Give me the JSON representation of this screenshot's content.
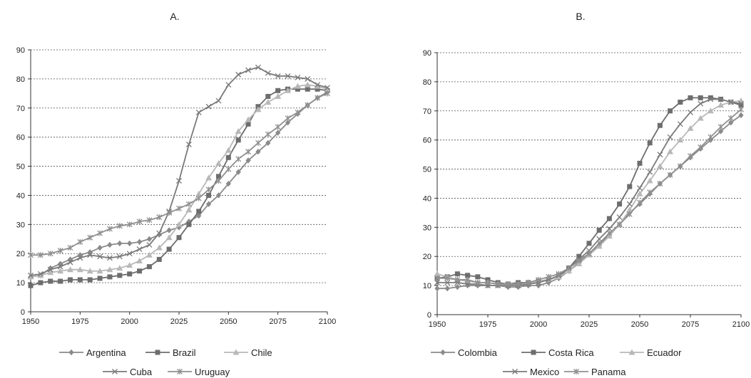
{
  "chart_data": [
    {
      "type": "line",
      "title": "A.",
      "xlabel": "",
      "ylabel": "",
      "x_ticks": [
        1950,
        1975,
        2000,
        2025,
        2050,
        2075,
        2100
      ],
      "y_ticks": [
        0,
        10,
        20,
        30,
        40,
        50,
        60,
        70,
        80,
        90
      ],
      "xlim": [
        1950,
        2100
      ],
      "ylim": [
        0,
        90
      ],
      "grid": "horizontal dashed",
      "legend_position": "bottom",
      "x": [
        1950,
        1955,
        1960,
        1965,
        1970,
        1975,
        1980,
        1985,
        1990,
        1995,
        2000,
        2005,
        2010,
        2015,
        2020,
        2025,
        2030,
        2035,
        2040,
        2045,
        2050,
        2055,
        2060,
        2065,
        2070,
        2075,
        2080,
        2085,
        2090,
        2095,
        2100
      ],
      "series": [
        {
          "name": "Argentina",
          "marker": "diamond",
          "color": "#8a8a8a",
          "values": [
            12,
            12.5,
            15,
            16.5,
            18,
            19.5,
            20.5,
            22,
            23,
            23.5,
            23.5,
            24,
            25,
            26.5,
            28,
            29,
            31,
            33,
            37,
            40,
            44,
            48,
            52,
            55,
            58,
            61.5,
            65,
            68,
            71,
            73.5,
            75.5
          ]
        },
        {
          "name": "Brazil",
          "marker": "square",
          "color": "#6d6d6d",
          "values": [
            9,
            10,
            10.5,
            10.5,
            11,
            11,
            11,
            11.5,
            12,
            12.5,
            13,
            14,
            15.5,
            18,
            21.5,
            25.5,
            30,
            34.5,
            40,
            46.5,
            53,
            59,
            64.5,
            70.5,
            74,
            76,
            76.5,
            76.5,
            76.5,
            76.5,
            76
          ]
        },
        {
          "name": "Chile",
          "marker": "triangle",
          "color": "#b8b8b8",
          "values": [
            12,
            12.5,
            13.5,
            14,
            14.5,
            14.5,
            14,
            14,
            14.5,
            15,
            16,
            17.5,
            19.5,
            22,
            25.5,
            30,
            35,
            40.5,
            46,
            51,
            55.5,
            62,
            66,
            69.5,
            72,
            74,
            76,
            77.5,
            78,
            77.5,
            76.5
          ]
        },
        {
          "name": "Cuba",
          "marker": "x",
          "color": "#7a7a7a",
          "values": [
            12.5,
            13,
            14.5,
            15.5,
            17,
            18.5,
            19.5,
            19,
            18.5,
            19,
            20,
            21.5,
            23,
            27,
            34.5,
            45,
            57.5,
            68.5,
            70.5,
            72.5,
            78,
            81.5,
            83,
            84,
            82,
            81,
            81,
            80.5,
            80,
            78,
            77
          ]
        },
        {
          "name": "Uruguay",
          "marker": "star",
          "color": "#909090",
          "values": [
            19.5,
            19.5,
            20,
            21,
            22,
            24,
            25.5,
            27,
            28.5,
            29.5,
            30,
            31,
            31.5,
            32.5,
            34,
            35.5,
            37,
            39,
            42,
            45,
            49,
            52.5,
            55,
            58,
            61,
            63.5,
            66.5,
            68.5,
            71,
            73.5,
            75
          ]
        }
      ]
    },
    {
      "type": "line",
      "title": "B.",
      "xlabel": "",
      "ylabel": "",
      "x_ticks": [
        1950,
        1975,
        2000,
        2025,
        2050,
        2075,
        2100
      ],
      "y_ticks": [
        0,
        10,
        20,
        30,
        40,
        50,
        60,
        70,
        80,
        90
      ],
      "xlim": [
        1950,
        2100
      ],
      "ylim": [
        0,
        90
      ],
      "grid": "horizontal dashed",
      "legend_position": "bottom",
      "x": [
        1950,
        1955,
        1960,
        1965,
        1970,
        1975,
        1980,
        1985,
        1990,
        1995,
        2000,
        2005,
        2010,
        2015,
        2020,
        2025,
        2030,
        2035,
        2040,
        2045,
        2050,
        2055,
        2060,
        2065,
        2070,
        2075,
        2080,
        2085,
        2090,
        2095,
        2100
      ],
      "series": [
        {
          "name": "Colombia",
          "marker": "diamond",
          "color": "#8a8a8a",
          "values": [
            9,
            9,
            9.5,
            10,
            10,
            10,
            10,
            9.5,
            9.5,
            10,
            10,
            11,
            12.5,
            15,
            18,
            21,
            24,
            27.5,
            31,
            35,
            38,
            41.5,
            45,
            48,
            51,
            54,
            57,
            60,
            63,
            66,
            68.5
          ]
        },
        {
          "name": "Costa Rica",
          "marker": "square",
          "color": "#6d6d6d",
          "values": [
            12.5,
            13,
            14,
            13.5,
            13,
            12,
            11,
            10.5,
            11,
            11,
            11.5,
            12,
            13,
            16,
            20,
            24.5,
            29,
            33,
            38,
            44,
            52,
            59,
            65,
            70,
            73,
            74.5,
            74.5,
            74.5,
            74,
            73,
            72
          ]
        },
        {
          "name": "Ecuador",
          "marker": "triangle",
          "color": "#b8b8b8",
          "values": [
            14,
            13,
            12,
            11.5,
            11,
            11,
            10.5,
            10.5,
            10.5,
            11,
            11.5,
            12,
            13,
            15,
            17.5,
            20.5,
            23.5,
            27,
            31,
            36,
            41.5,
            46,
            51,
            56,
            60,
            64,
            67.5,
            70,
            72,
            73,
            73.5
          ]
        },
        {
          "name": "Mexico",
          "marker": "x",
          "color": "#7a7a7a",
          "values": [
            11,
            11,
            11,
            10.5,
            10.5,
            10,
            10,
            10,
            10,
            10.5,
            11,
            12,
            13.5,
            16,
            19,
            22,
            26,
            29.5,
            33.5,
            38,
            43.5,
            49,
            55,
            61,
            65.5,
            69.5,
            72.5,
            74,
            74,
            73,
            72.5
          ]
        },
        {
          "name": "Panama",
          "marker": "star",
          "color": "#909090",
          "values": [
            12.5,
            12.5,
            12,
            12,
            11,
            11,
            10.5,
            10.5,
            10.5,
            11,
            12,
            13,
            14,
            16,
            18.5,
            21,
            24.5,
            28,
            31,
            34.5,
            38.5,
            42,
            45,
            48,
            51,
            54.5,
            57.5,
            61,
            64.5,
            67.5,
            70.5
          ]
        }
      ]
    }
  ]
}
